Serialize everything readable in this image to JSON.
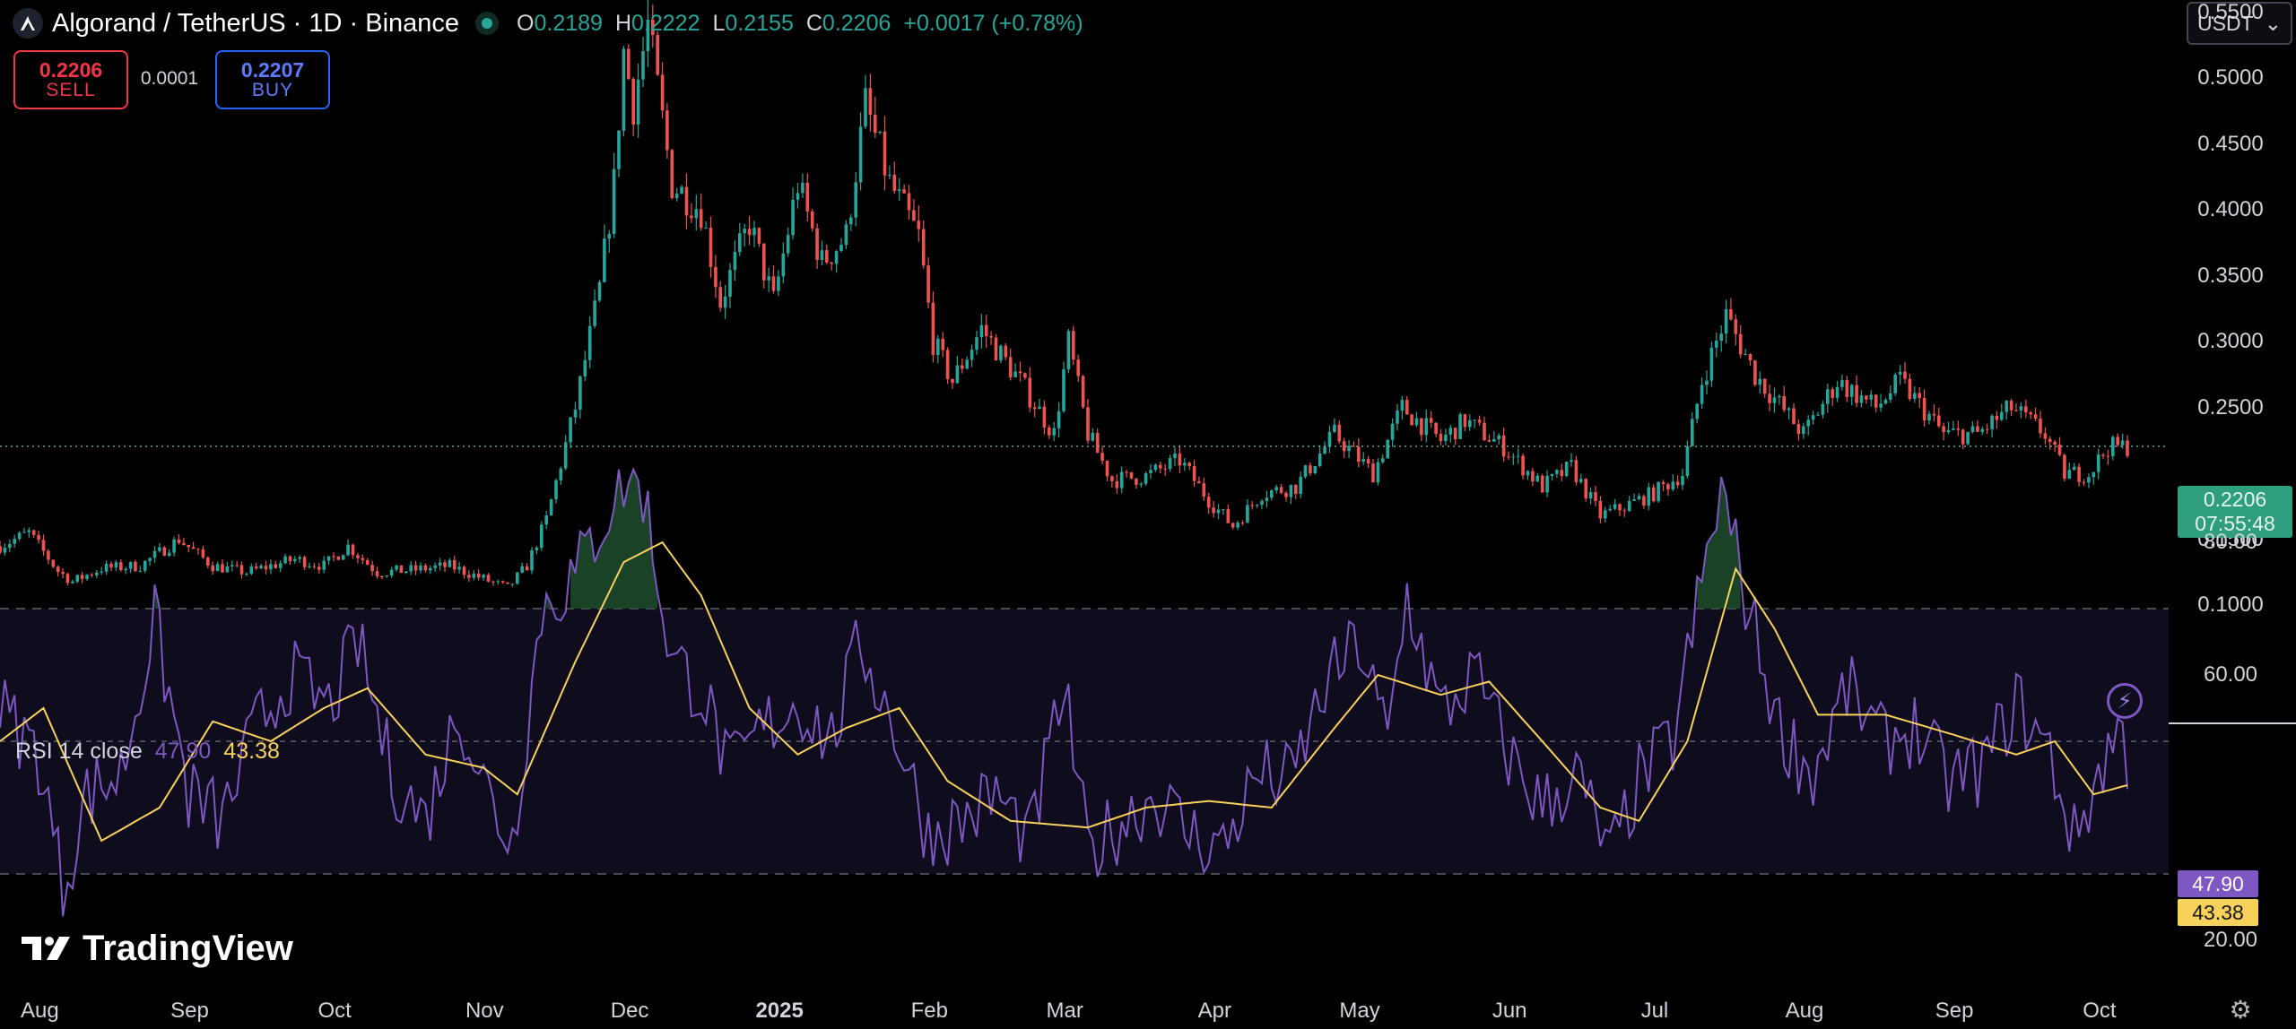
{
  "header": {
    "symbol_title": "Algorand / TetherUS · 1D · Binance",
    "ohlc": [
      {
        "key": "O",
        "value": "0.2189"
      },
      {
        "key": "H",
        "value": "0.2222"
      },
      {
        "key": "L",
        "value": "0.2155"
      },
      {
        "key": "C",
        "value": "0.2206"
      }
    ],
    "change": "+0.0017 (+0.78%)",
    "symbol_icon": "algorand-logo-icon",
    "status_icon": "market-open-dot-icon"
  },
  "trade": {
    "sell_price": "0.2206",
    "sell_label": "SELL",
    "spread": "0.0001",
    "buy_price": "0.2207",
    "buy_label": "BUY"
  },
  "currency_selector": {
    "value": "USDT",
    "icon": "chevron-down-icon"
  },
  "price_axis": {
    "labels": [
      "0.5500",
      "0.5000",
      "0.4500",
      "0.4000",
      "0.3500",
      "0.3000",
      "0.2500",
      "0.1500",
      "0.1000"
    ],
    "last_price": "0.2206",
    "countdown": "07:55:48"
  },
  "rsi": {
    "title": "RSI 14 close",
    "value": "47.90",
    "ma_value": "43.38",
    "axis_labels": [
      "80.00",
      "60.00",
      "20.00"
    ],
    "levels": [
      70,
      50,
      30
    ]
  },
  "time_axis": [
    "Aug",
    "Sep",
    "Oct",
    "Nov",
    "Dec",
    "2025",
    "Feb",
    "Mar",
    "Apr",
    "May",
    "Jun",
    "Jul",
    "Aug",
    "Sep",
    "Oct"
  ],
  "watermark": "TradingView",
  "icons": {
    "flash": "lightning-icon",
    "settings": "gear-icon"
  },
  "colors": {
    "up": "#26a69a",
    "down": "#ef5350",
    "rsi_line": "#7e57c2",
    "rsi_ma": "#f7d15a",
    "last_price_tag": "#2f9e7e"
  },
  "chart_data": {
    "type": "candlestick",
    "interval": "1D",
    "ylim": [
      0.05,
      0.57
    ],
    "price_path": [
      [
        "2024-07-26",
        0.145
      ],
      [
        "2024-08-01",
        0.155
      ],
      [
        "2024-08-07",
        0.126
      ],
      [
        "2024-08-10",
        0.118
      ],
      [
        "2024-08-16",
        0.128
      ],
      [
        "2024-08-24",
        0.13
      ],
      [
        "2024-09-01",
        0.15
      ],
      [
        "2024-09-08",
        0.13
      ],
      [
        "2024-09-15",
        0.125
      ],
      [
        "2024-09-25",
        0.135
      ],
      [
        "2024-10-01",
        0.13
      ],
      [
        "2024-10-06",
        0.145
      ],
      [
        "2024-10-12",
        0.125
      ],
      [
        "2024-10-20",
        0.127
      ],
      [
        "2024-10-27",
        0.13
      ],
      [
        "2024-11-03",
        0.12
      ],
      [
        "2024-11-08",
        0.113
      ],
      [
        "2024-11-12",
        0.13
      ],
      [
        "2024-11-16",
        0.165
      ],
      [
        "2024-11-22",
        0.25
      ],
      [
        "2024-11-27",
        0.34
      ],
      [
        "2024-11-30",
        0.42
      ],
      [
        "2024-12-02",
        0.52
      ],
      [
        "2024-12-04",
        0.48
      ],
      [
        "2024-12-07",
        0.54
      ],
      [
        "2024-12-12",
        0.42
      ],
      [
        "2024-12-18",
        0.4
      ],
      [
        "2024-12-22",
        0.33
      ],
      [
        "2024-12-28",
        0.39
      ],
      [
        "2025-01-02",
        0.33
      ],
      [
        "2025-01-07",
        0.42
      ],
      [
        "2025-01-12",
        0.36
      ],
      [
        "2025-01-17",
        0.38
      ],
      [
        "2025-01-21",
        0.48
      ],
      [
        "2025-01-26",
        0.42
      ],
      [
        "2025-02-01",
        0.38
      ],
      [
        "2025-02-04",
        0.3
      ],
      [
        "2025-02-08",
        0.27
      ],
      [
        "2025-02-14",
        0.31
      ],
      [
        "2025-02-22",
        0.27
      ],
      [
        "2025-03-01",
        0.23
      ],
      [
        "2025-03-04",
        0.3
      ],
      [
        "2025-03-08",
        0.23
      ],
      [
        "2025-03-13",
        0.195
      ],
      [
        "2025-03-20",
        0.198
      ],
      [
        "2025-03-27",
        0.21
      ],
      [
        "2025-04-02",
        0.18
      ],
      [
        "2025-04-07",
        0.16
      ],
      [
        "2025-04-13",
        0.185
      ],
      [
        "2025-04-20",
        0.19
      ],
      [
        "2025-04-28",
        0.23
      ],
      [
        "2025-05-06",
        0.2
      ],
      [
        "2025-05-12",
        0.25
      ],
      [
        "2025-05-20",
        0.225
      ],
      [
        "2025-05-25",
        0.24
      ],
      [
        "2025-06-02",
        0.22
      ],
      [
        "2025-06-10",
        0.19
      ],
      [
        "2025-06-16",
        0.205
      ],
      [
        "2025-06-22",
        0.168
      ],
      [
        "2025-06-27",
        0.175
      ],
      [
        "2025-07-03",
        0.185
      ],
      [
        "2025-07-09",
        0.2
      ],
      [
        "2025-07-13",
        0.27
      ],
      [
        "2025-07-18",
        0.32
      ],
      [
        "2025-07-24",
        0.275
      ],
      [
        "2025-08-03",
        0.23
      ],
      [
        "2025-08-10",
        0.27
      ],
      [
        "2025-08-18",
        0.25
      ],
      [
        "2025-08-23",
        0.27
      ],
      [
        "2025-09-01",
        0.23
      ],
      [
        "2025-09-08",
        0.23
      ],
      [
        "2025-09-15",
        0.25
      ],
      [
        "2025-09-22",
        0.23
      ],
      [
        "2025-09-26",
        0.2
      ],
      [
        "2025-10-01",
        0.2
      ],
      [
        "2025-10-05",
        0.22
      ],
      [
        "2025-10-09",
        0.2206
      ]
    ],
    "rsi_path": [
      [
        "2024-07-26",
        55
      ],
      [
        "2024-08-03",
        48
      ],
      [
        "2024-08-08",
        28
      ],
      [
        "2024-08-13",
        42
      ],
      [
        "2024-08-20",
        45
      ],
      [
        "2024-08-27",
        68
      ],
      [
        "2024-09-03",
        42
      ],
      [
        "2024-09-10",
        38
      ],
      [
        "2024-09-17",
        52
      ],
      [
        "2024-09-24",
        60
      ],
      [
        "2024-10-02",
        55
      ],
      [
        "2024-10-08",
        65
      ],
      [
        "2024-10-15",
        45
      ],
      [
        "2024-10-22",
        38
      ],
      [
        "2024-10-29",
        55
      ],
      [
        "2024-11-05",
        40
      ],
      [
        "2024-11-09",
        35
      ],
      [
        "2024-11-15",
        70
      ],
      [
        "2024-11-22",
        75
      ],
      [
        "2024-11-28",
        84
      ],
      [
        "2024-12-03",
        90
      ],
      [
        "2024-12-06",
        88
      ],
      [
        "2024-12-12",
        62
      ],
      [
        "2024-12-18",
        58
      ],
      [
        "2024-12-24",
        45
      ],
      [
        "2024-12-31",
        52
      ],
      [
        "2025-01-07",
        56
      ],
      [
        "2025-01-14",
        50
      ],
      [
        "2025-01-20",
        65
      ],
      [
        "2025-01-27",
        52
      ],
      [
        "2025-02-03",
        36
      ],
      [
        "2025-02-10",
        38
      ],
      [
        "2025-02-17",
        42
      ],
      [
        "2025-02-24",
        35
      ],
      [
        "2025-03-03",
        58
      ],
      [
        "2025-03-08",
        33
      ],
      [
        "2025-03-15",
        38
      ],
      [
        "2025-03-22",
        42
      ],
      [
        "2025-03-29",
        36
      ],
      [
        "2025-04-05",
        34
      ],
      [
        "2025-04-12",
        45
      ],
      [
        "2025-04-19",
        44
      ],
      [
        "2025-04-26",
        58
      ],
      [
        "2025-05-03",
        65
      ],
      [
        "2025-05-09",
        50
      ],
      [
        "2025-05-13",
        72
      ],
      [
        "2025-05-20",
        54
      ],
      [
        "2025-05-27",
        60
      ],
      [
        "2025-06-03",
        48
      ],
      [
        "2025-06-10",
        40
      ],
      [
        "2025-06-17",
        45
      ],
      [
        "2025-06-24",
        32
      ],
      [
        "2025-06-30",
        44
      ],
      [
        "2025-07-07",
        50
      ],
      [
        "2025-07-12",
        70
      ],
      [
        "2025-07-17",
        88
      ],
      [
        "2025-07-22",
        72
      ],
      [
        "2025-07-29",
        52
      ],
      [
        "2025-08-05",
        45
      ],
      [
        "2025-08-12",
        58
      ],
      [
        "2025-08-19",
        50
      ],
      [
        "2025-08-26",
        52
      ],
      [
        "2025-09-02",
        44
      ],
      [
        "2025-09-09",
        46
      ],
      [
        "2025-09-16",
        56
      ],
      [
        "2025-09-23",
        48
      ],
      [
        "2025-09-28",
        35
      ],
      [
        "2025-10-03",
        45
      ],
      [
        "2025-10-07",
        52
      ],
      [
        "2025-10-09",
        47.9
      ]
    ],
    "rsi_ma_path": [
      [
        "2024-07-26",
        50
      ],
      [
        "2024-08-04",
        55
      ],
      [
        "2024-08-16",
        35
      ],
      [
        "2024-08-28",
        40
      ],
      [
        "2024-09-08",
        53
      ],
      [
        "2024-09-20",
        50
      ],
      [
        "2024-10-01",
        55
      ],
      [
        "2024-10-10",
        58
      ],
      [
        "2024-10-22",
        48
      ],
      [
        "2024-11-03",
        46
      ],
      [
        "2024-11-10",
        42
      ],
      [
        "2024-11-22",
        62
      ],
      [
        "2024-12-02",
        77
      ],
      [
        "2024-12-10",
        80
      ],
      [
        "2024-12-18",
        72
      ],
      [
        "2024-12-28",
        55
      ],
      [
        "2025-01-07",
        48
      ],
      [
        "2025-01-17",
        52
      ],
      [
        "2025-01-28",
        55
      ],
      [
        "2025-02-07",
        44
      ],
      [
        "2025-02-20",
        38
      ],
      [
        "2025-03-08",
        37
      ],
      [
        "2025-03-20",
        40
      ],
      [
        "2025-04-02",
        41
      ],
      [
        "2025-04-15",
        40
      ],
      [
        "2025-04-28",
        52
      ],
      [
        "2025-05-07",
        60
      ],
      [
        "2025-05-20",
        57
      ],
      [
        "2025-05-30",
        59
      ],
      [
        "2025-06-10",
        50
      ],
      [
        "2025-06-22",
        40
      ],
      [
        "2025-06-30",
        38
      ],
      [
        "2025-07-10",
        50
      ],
      [
        "2025-07-20",
        76
      ],
      [
        "2025-07-28",
        67
      ],
      [
        "2025-08-06",
        54
      ],
      [
        "2025-08-20",
        54
      ],
      [
        "2025-09-03",
        51
      ],
      [
        "2025-09-16",
        48
      ],
      [
        "2025-09-24",
        50
      ],
      [
        "2025-10-02",
        42
      ],
      [
        "2025-10-09",
        43.38
      ]
    ]
  }
}
